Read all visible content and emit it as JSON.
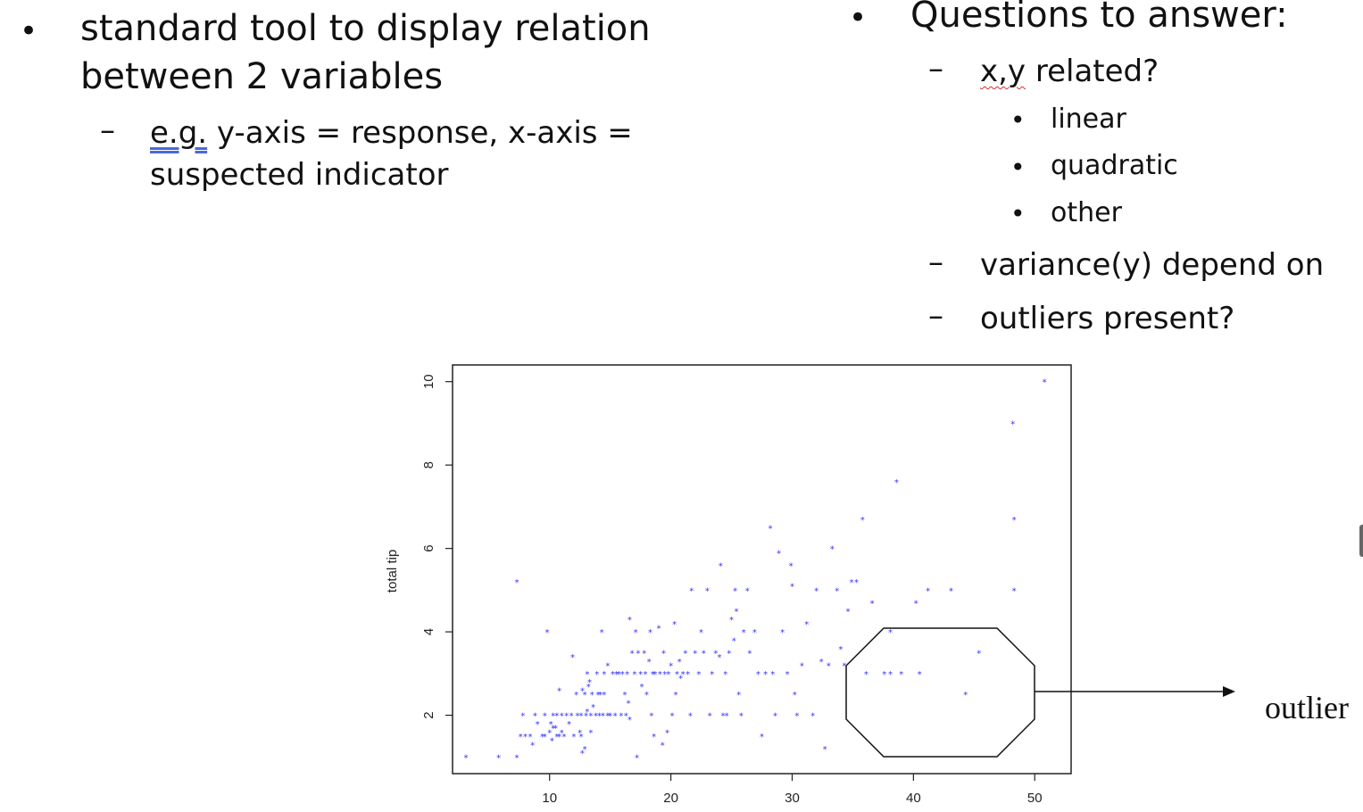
{
  "left_text": {
    "bullet_line1": "standard tool to display relation",
    "bullet_line2": "between 2 variables",
    "sub_prefix": "e.g.",
    "sub_rest": " y-axis = response, x-axis =",
    "sub_line2": "suspected indicator"
  },
  "right_text": {
    "heading": "Questions to answer:",
    "q1_prefix": "x,y",
    "q1_rest": " related?",
    "q1_options": [
      "linear",
      "quadratic",
      "other"
    ],
    "q2": "variance(y) depend on",
    "q3": "outliers present?"
  },
  "symbols": {
    "bullet": "•",
    "dash": "–"
  },
  "annotation": {
    "label": "outlier"
  },
  "chart_data": {
    "type": "scatter",
    "xlabel": "",
    "ylabel": "total tip",
    "xlim": [
      2,
      53
    ],
    "ylim": [
      0.6,
      10.4
    ],
    "xticks": [
      10,
      20,
      30,
      40,
      50
    ],
    "yticks": [
      2,
      4,
      6,
      8,
      10
    ],
    "point_color": "#3333ff",
    "grid": false,
    "points": [
      [
        3.1,
        1.0
      ],
      [
        5.8,
        1.0
      ],
      [
        7.3,
        1.0
      ],
      [
        7.3,
        5.2
      ],
      [
        7.6,
        1.5
      ],
      [
        7.8,
        2.0
      ],
      [
        8.0,
        1.5
      ],
      [
        8.4,
        1.5
      ],
      [
        8.6,
        1.3
      ],
      [
        8.8,
        2.0
      ],
      [
        9.0,
        1.8
      ],
      [
        9.4,
        1.5
      ],
      [
        9.6,
        2.0
      ],
      [
        9.6,
        1.5
      ],
      [
        9.8,
        4.0
      ],
      [
        10.0,
        1.6
      ],
      [
        10.1,
        1.8
      ],
      [
        10.2,
        1.4
      ],
      [
        10.3,
        2.0
      ],
      [
        10.3,
        1.7
      ],
      [
        10.5,
        1.7
      ],
      [
        10.6,
        2.0
      ],
      [
        10.6,
        1.5
      ],
      [
        10.8,
        1.5
      ],
      [
        10.8,
        2.6
      ],
      [
        11.0,
        1.6
      ],
      [
        11.0,
        2.0
      ],
      [
        11.2,
        1.5
      ],
      [
        11.4,
        2.0
      ],
      [
        11.6,
        1.8
      ],
      [
        11.8,
        2.0
      ],
      [
        11.9,
        3.4
      ],
      [
        12.0,
        1.5
      ],
      [
        12.2,
        2.5
      ],
      [
        12.3,
        2.0
      ],
      [
        12.5,
        1.6
      ],
      [
        12.6,
        2.0
      ],
      [
        12.6,
        1.5
      ],
      [
        12.7,
        2.6
      ],
      [
        12.7,
        1.1
      ],
      [
        12.9,
        1.2
      ],
      [
        12.9,
        2.5
      ],
      [
        13.0,
        2.0
      ],
      [
        13.1,
        2.1
      ],
      [
        13.1,
        3.0
      ],
      [
        13.2,
        2.7
      ],
      [
        13.3,
        2.8
      ],
      [
        13.4,
        2.0
      ],
      [
        13.4,
        1.6
      ],
      [
        13.5,
        2.5
      ],
      [
        13.6,
        2.2
      ],
      [
        13.8,
        2.0
      ],
      [
        13.9,
        3.0
      ],
      [
        14.0,
        2.5
      ],
      [
        14.1,
        2.0
      ],
      [
        14.2,
        2.5
      ],
      [
        14.3,
        4.0
      ],
      [
        14.4,
        2.0
      ],
      [
        14.5,
        2.5
      ],
      [
        14.5,
        3.0
      ],
      [
        14.8,
        2.0
      ],
      [
        14.8,
        3.2
      ],
      [
        15.0,
        2.0
      ],
      [
        15.2,
        3.0
      ],
      [
        15.4,
        2.0
      ],
      [
        15.5,
        3.0
      ],
      [
        15.7,
        3.0
      ],
      [
        15.9,
        2.0
      ],
      [
        16.0,
        3.0
      ],
      [
        16.2,
        2.5
      ],
      [
        16.3,
        2.0
      ],
      [
        16.4,
        3.0
      ],
      [
        16.5,
        2.3
      ],
      [
        16.6,
        4.3
      ],
      [
        16.6,
        1.9
      ],
      [
        16.8,
        3.5
      ],
      [
        17.0,
        3.0
      ],
      [
        17.1,
        4.0
      ],
      [
        17.2,
        1.0
      ],
      [
        17.3,
        3.5
      ],
      [
        17.5,
        3.0
      ],
      [
        17.6,
        2.7
      ],
      [
        17.8,
        3.5
      ],
      [
        17.9,
        3.0
      ],
      [
        18.0,
        2.5
      ],
      [
        18.2,
        3.3
      ],
      [
        18.3,
        4.0
      ],
      [
        18.4,
        2.0
      ],
      [
        18.5,
        3.0
      ],
      [
        18.6,
        1.5
      ],
      [
        18.7,
        3.0
      ],
      [
        19.0,
        4.1
      ],
      [
        19.1,
        3.0
      ],
      [
        19.3,
        1.3
      ],
      [
        19.4,
        3.5
      ],
      [
        19.5,
        3.0
      ],
      [
        19.7,
        1.6
      ],
      [
        19.8,
        3.0
      ],
      [
        20.0,
        3.2
      ],
      [
        20.1,
        2.0
      ],
      [
        20.3,
        4.2
      ],
      [
        20.4,
        2.5
      ],
      [
        20.5,
        3.0
      ],
      [
        20.7,
        3.3
      ],
      [
        20.8,
        2.9
      ],
      [
        21.0,
        3.0
      ],
      [
        21.2,
        3.5
      ],
      [
        21.4,
        3.0
      ],
      [
        21.6,
        2.0
      ],
      [
        21.7,
        5.0
      ],
      [
        22.0,
        3.5
      ],
      [
        22.3,
        3.0
      ],
      [
        22.5,
        4.0
      ],
      [
        22.7,
        3.5
      ],
      [
        23.0,
        5.0
      ],
      [
        23.2,
        2.0
      ],
      [
        23.4,
        3.0
      ],
      [
        23.7,
        3.5
      ],
      [
        24.0,
        3.4
      ],
      [
        24.1,
        5.6
      ],
      [
        24.3,
        2.0
      ],
      [
        24.5,
        3.0
      ],
      [
        24.6,
        2.0
      ],
      [
        24.8,
        3.5
      ],
      [
        25.0,
        4.3
      ],
      [
        25.2,
        3.8
      ],
      [
        25.3,
        5.0
      ],
      [
        25.4,
        4.5
      ],
      [
        25.6,
        2.5
      ],
      [
        25.8,
        2.0
      ],
      [
        26.0,
        4.0
      ],
      [
        26.3,
        5.0
      ],
      [
        26.5,
        3.5
      ],
      [
        26.9,
        4.0
      ],
      [
        27.2,
        3.0
      ],
      [
        27.5,
        1.5
      ],
      [
        27.8,
        3.0
      ],
      [
        28.2,
        6.5
      ],
      [
        28.4,
        3.0
      ],
      [
        28.6,
        2.0
      ],
      [
        28.9,
        5.9
      ],
      [
        29.2,
        4.0
      ],
      [
        29.6,
        3.0
      ],
      [
        29.9,
        5.6
      ],
      [
        30.0,
        5.1
      ],
      [
        30.2,
        2.5
      ],
      [
        30.4,
        2.0
      ],
      [
        30.8,
        3.2
      ],
      [
        31.2,
        4.2
      ],
      [
        31.7,
        2.0
      ],
      [
        32.0,
        5.0
      ],
      [
        32.4,
        3.3
      ],
      [
        32.7,
        1.2
      ],
      [
        33.0,
        3.2
      ],
      [
        33.3,
        6.0
      ],
      [
        33.7,
        5.0
      ],
      [
        34.0,
        3.6
      ],
      [
        34.3,
        3.2
      ],
      [
        34.6,
        4.5
      ],
      [
        34.9,
        5.2
      ],
      [
        35.3,
        5.2
      ],
      [
        35.8,
        6.7
      ],
      [
        36.1,
        3.0
      ],
      [
        36.6,
        4.7
      ],
      [
        37.6,
        3.0
      ],
      [
        38.1,
        4.0
      ],
      [
        38.1,
        3.0
      ],
      [
        38.6,
        7.6
      ],
      [
        39.0,
        3.0
      ],
      [
        40.2,
        4.7
      ],
      [
        40.5,
        3.0
      ],
      [
        41.2,
        5.0
      ],
      [
        43.1,
        5.0
      ],
      [
        44.3,
        2.5
      ],
      [
        45.4,
        3.5
      ],
      [
        48.2,
        9.0
      ],
      [
        48.3,
        6.7
      ],
      [
        48.3,
        5.0
      ],
      [
        50.8,
        10.0
      ]
    ]
  }
}
